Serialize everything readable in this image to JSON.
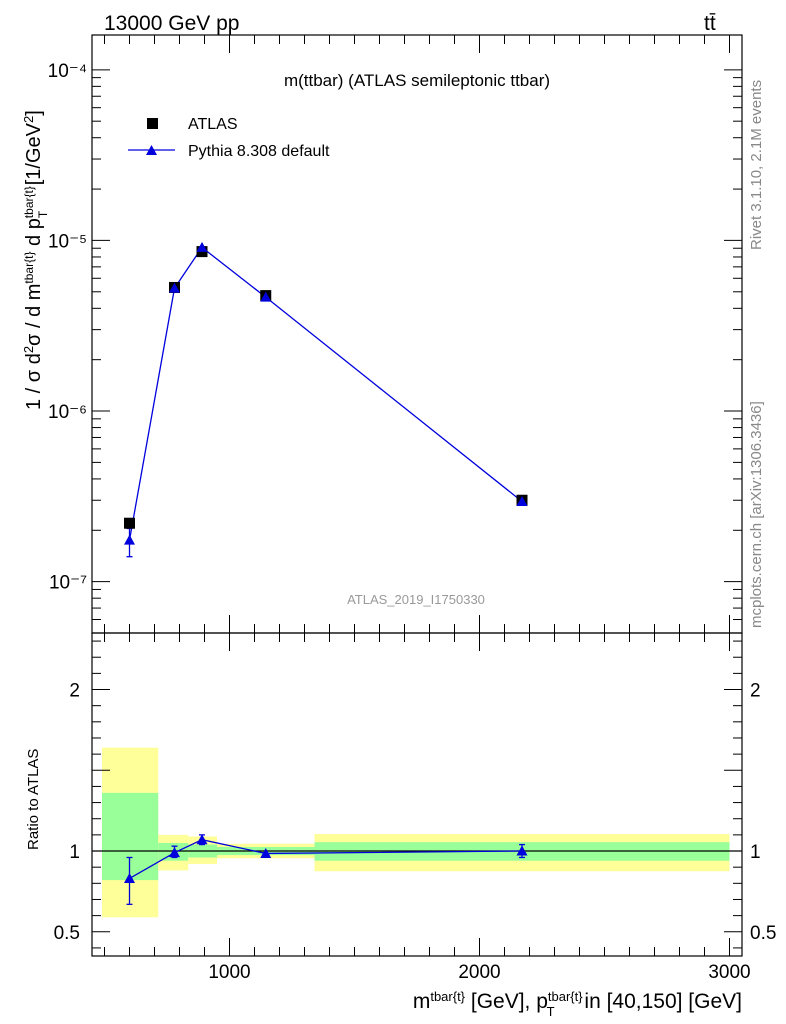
{
  "header": {
    "left": "13000 GeV pp",
    "right": "tt̄"
  },
  "side_labels": {
    "rivet": "Rivet 3.1.10,  2.1M events",
    "mcplots": "mcplots.cern.ch [arXiv:1306.3436]"
  },
  "chart_data": [
    {
      "type": "scatter",
      "panel": "main",
      "title": "m(ttbar) (ATLAS semileptonic ttbar)",
      "watermark": "ATLAS_2019_I1750330",
      "ylabel": "1 / σ d²σ / d m^tbar{t} d p_T^tbar{t} [1/GeV²]",
      "yscale": "log",
      "ylim": [
        5e-08,
        0.00016
      ],
      "xlim": [
        450,
        3050
      ],
      "y_ticks": [
        {
          "value": 1e-07,
          "label": "10⁻⁷"
        },
        {
          "value": 1e-06,
          "label": "10⁻⁶"
        },
        {
          "value": 1e-05,
          "label": "10⁻⁵"
        },
        {
          "value": 0.0001,
          "label": "10⁻⁴"
        }
      ],
      "legend_position": "top-left",
      "series": [
        {
          "name": "ATLAS",
          "marker": "square",
          "color": "#000000",
          "x": [
            600,
            780,
            890,
            1145,
            2170
          ],
          "y": [
            2.2e-07,
            5.3e-06,
            8.6e-06,
            4.75e-06,
            3e-07
          ]
        },
        {
          "name": "Pythia 8.308 default",
          "marker": "triangle",
          "color": "#0000dd",
          "x": [
            600,
            780,
            890,
            1145,
            2170
          ],
          "y": [
            1.75e-07,
            5.25e-06,
            9.1e-06,
            4.65e-06,
            2.95e-07
          ],
          "yerr_low": [
            1.4e-07,
            null,
            null,
            null,
            null
          ],
          "yerr_high": [
            2.05e-07,
            null,
            null,
            null,
            null
          ]
        }
      ]
    },
    {
      "type": "scatter",
      "panel": "ratio",
      "ylabel": "Ratio to ATLAS",
      "xlabel": "m^tbar{t} [GeV], p_T^tbar{t} in [40,150] [GeV]",
      "ylim": [
        0.35,
        2.35
      ],
      "xlim": [
        450,
        3050
      ],
      "x_ticks": [
        {
          "value": 1000,
          "label": "1000"
        },
        {
          "value": 2000,
          "label": "2000"
        },
        {
          "value": 3000,
          "label": "3000"
        }
      ],
      "y_ticks": [
        {
          "value": 0.5,
          "label": "0.5"
        },
        {
          "value": 1,
          "label": "1"
        },
        {
          "value": 2,
          "label": "2"
        }
      ],
      "reference_line": 1,
      "uncertainty_bands": [
        {
          "x_low": 490,
          "x_high": 715,
          "yellow": [
            0.59,
            1.64
          ],
          "green": [
            0.82,
            1.36
          ]
        },
        {
          "x_low": 715,
          "x_high": 835,
          "yellow": [
            0.88,
            1.1
          ],
          "green": [
            0.94,
            1.05
          ]
        },
        {
          "x_low": 835,
          "x_high": 950,
          "yellow": [
            0.92,
            1.09
          ],
          "green": [
            0.96,
            1.04
          ]
        },
        {
          "x_low": 950,
          "x_high": 1340,
          "yellow": [
            0.955,
            1.045
          ],
          "green": [
            0.975,
            1.025
          ]
        },
        {
          "x_low": 1340,
          "x_high": 3000,
          "yellow": [
            0.875,
            1.105
          ],
          "green": [
            0.94,
            1.055
          ]
        }
      ],
      "series": [
        {
          "name": "Pythia 8.308 default",
          "color": "#0000dd",
          "x": [
            600,
            780,
            890,
            1145,
            2170
          ],
          "y": [
            0.83,
            0.99,
            1.07,
            0.985,
            1.0
          ],
          "yerr_low": [
            0.67,
            0.96,
            1.04,
            null,
            0.96
          ],
          "yerr_high": [
            0.96,
            1.03,
            1.1,
            null,
            1.04
          ]
        }
      ]
    }
  ]
}
